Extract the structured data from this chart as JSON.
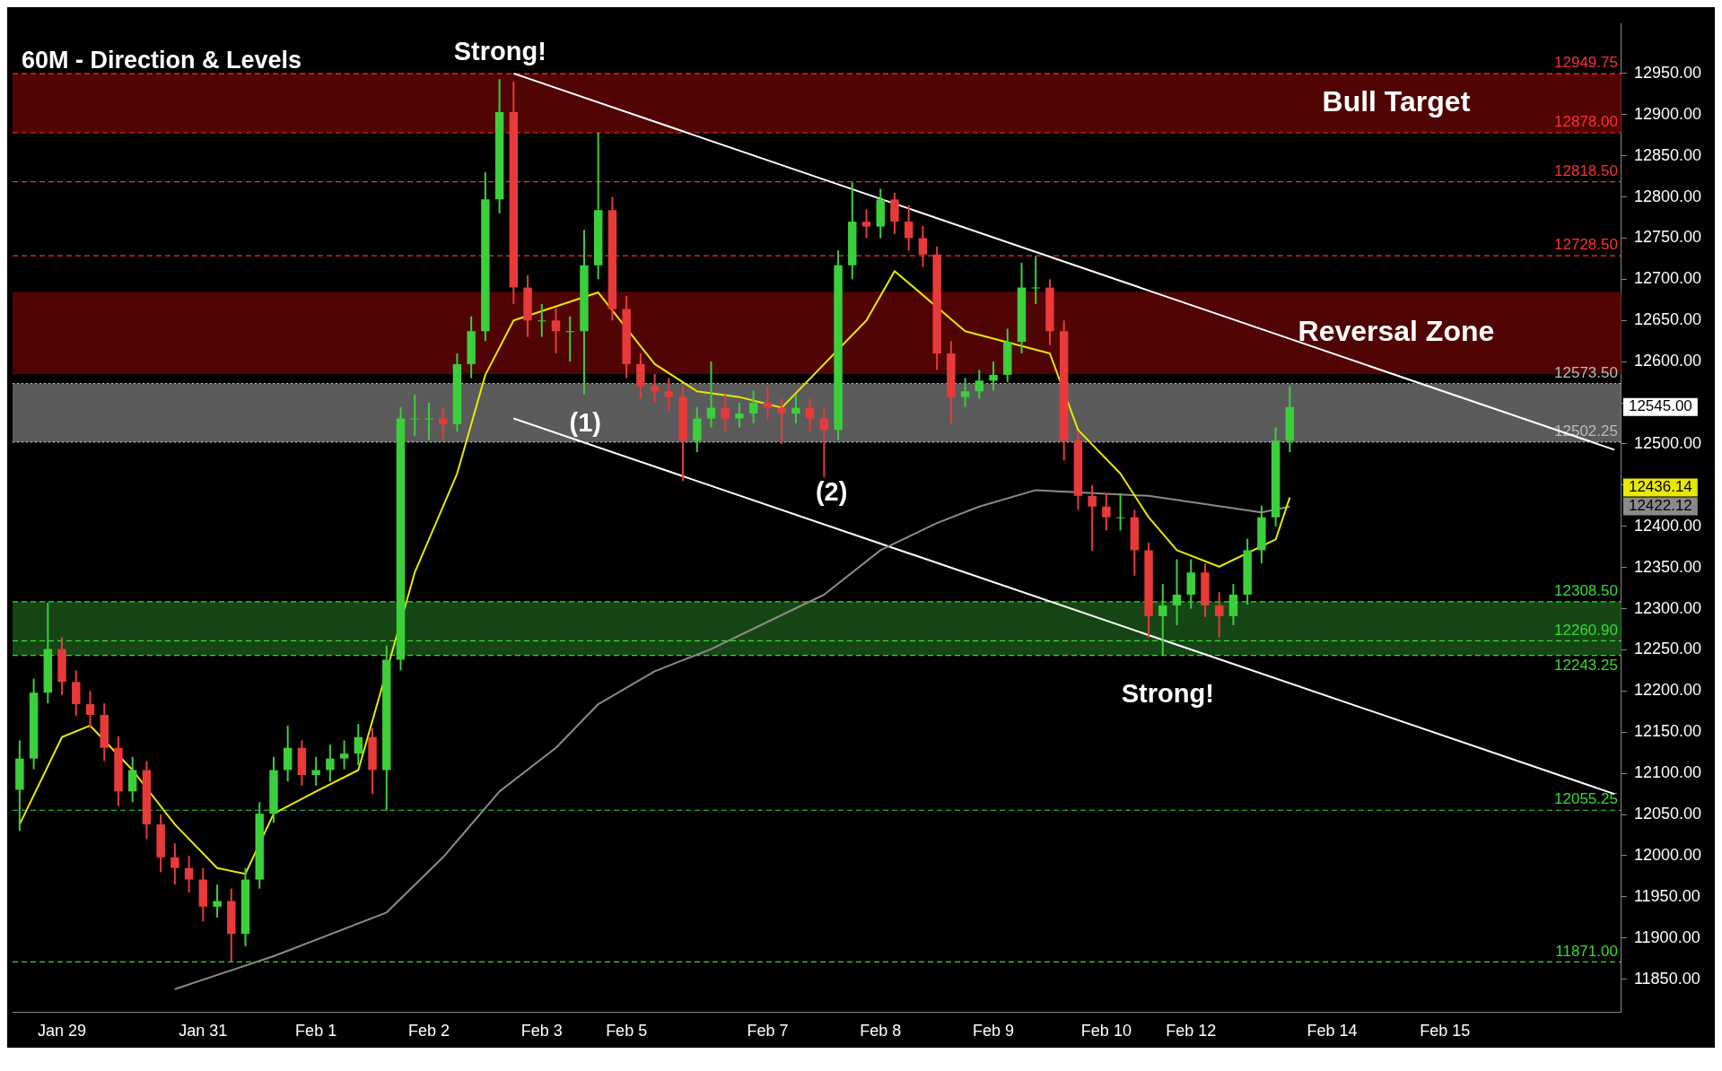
{
  "chart_data": {
    "type": "candlestick",
    "title": "60M - Direction & Levels",
    "categories": [
      null,
      null,
      null,
      "Jan 29",
      null,
      null,
      null,
      null,
      null,
      null,
      null,
      null,
      null,
      "Jan 31",
      null,
      null,
      null,
      null,
      null,
      null,
      null,
      "Feb 1",
      null,
      null,
      null,
      null,
      null,
      null,
      null,
      "Feb 2",
      null,
      null,
      null,
      null,
      null,
      null,
      null,
      "Feb 3",
      null,
      null,
      null,
      null,
      null,
      "Feb 5",
      null,
      null,
      null,
      null,
      null,
      null,
      null,
      null,
      null,
      "Feb 7",
      null,
      null,
      null,
      null,
      null,
      null,
      null,
      "Feb 8",
      null,
      null,
      null,
      null,
      null,
      null,
      null,
      "Feb 9",
      null,
      null,
      null,
      null,
      null,
      null,
      null,
      "Feb 10",
      null,
      null,
      null,
      null,
      null,
      "Feb 12",
      null,
      null,
      null,
      null,
      null,
      null,
      null,
      null,
      null,
      "Feb 14",
      null,
      null,
      null,
      null,
      null,
      null,
      null,
      "Feb 15",
      null,
      null,
      null,
      null,
      null,
      null,
      null,
      null,
      null,
      null,
      null,
      null
    ],
    "ohlc": [
      [
        12080,
        12140,
        12030,
        12118
      ],
      [
        12118,
        12215,
        12105,
        12198
      ],
      [
        12198,
        12307,
        12185,
        12251
      ],
      [
        12251,
        12265,
        12195,
        12211
      ],
      [
        12211,
        12225,
        12170,
        12184
      ],
      [
        12184,
        12200,
        12155,
        12171
      ],
      [
        12171,
        12185,
        12115,
        12131
      ],
      [
        12131,
        12145,
        12060,
        12078
      ],
      [
        12078,
        12120,
        12065,
        12104
      ],
      [
        12104,
        12115,
        12020,
        12038
      ],
      [
        12038,
        12050,
        11980,
        11998
      ],
      [
        11998,
        12015,
        11965,
        11985
      ],
      [
        11985,
        12000,
        11955,
        11971
      ],
      [
        11971,
        11985,
        11920,
        11938
      ],
      [
        11938,
        11965,
        11925,
        11945
      ],
      [
        11945,
        11960,
        11871,
        11905
      ],
      [
        11905,
        11985,
        11890,
        11971
      ],
      [
        11971,
        12065,
        11960,
        12051
      ],
      [
        12051,
        12120,
        12040,
        12104
      ],
      [
        12104,
        12158,
        12090,
        12131
      ],
      [
        12131,
        12140,
        12085,
        12098
      ],
      [
        12098,
        12120,
        12085,
        12104
      ],
      [
        12104,
        12135,
        12090,
        12118
      ],
      [
        12118,
        12140,
        12105,
        12124
      ],
      [
        12124,
        12160,
        12110,
        12144
      ],
      [
        12144,
        12155,
        12075,
        12104
      ],
      [
        12104,
        12255,
        12055,
        12238
      ],
      [
        12238,
        12545,
        12225,
        12531
      ],
      [
        12531,
        12560,
        12510,
        12531
      ],
      [
        12531,
        12550,
        12505,
        12531
      ],
      [
        12531,
        12545,
        12505,
        12524
      ],
      [
        12524,
        12610,
        12515,
        12597
      ],
      [
        12597,
        12655,
        12580,
        12637
      ],
      [
        12637,
        12830,
        12625,
        12797
      ],
      [
        12797,
        12943,
        12780,
        12903
      ],
      [
        12903,
        12940,
        12670,
        12690
      ],
      [
        12690,
        12705,
        12630,
        12650
      ],
      [
        12650,
        12670,
        12630,
        12650
      ],
      [
        12650,
        12665,
        12610,
        12637
      ],
      [
        12637,
        12655,
        12600,
        12637
      ],
      [
        12637,
        12760,
        12560,
        12717
      ],
      [
        12717,
        12878,
        12700,
        12784
      ],
      [
        12784,
        12800,
        12650,
        12664
      ],
      [
        12664,
        12680,
        12580,
        12597
      ],
      [
        12597,
        12610,
        12555,
        12570
      ],
      [
        12570,
        12585,
        12550,
        12564
      ],
      [
        12564,
        12580,
        12540,
        12557
      ],
      [
        12557,
        12570,
        12455,
        12504
      ],
      [
        12504,
        12545,
        12490,
        12531
      ],
      [
        12531,
        12600,
        12520,
        12544
      ],
      [
        12544,
        12560,
        12515,
        12531
      ],
      [
        12531,
        12550,
        12520,
        12537
      ],
      [
        12537,
        12565,
        12525,
        12550
      ],
      [
        12550,
        12570,
        12530,
        12544
      ],
      [
        12544,
        12555,
        12500,
        12537
      ],
      [
        12537,
        12560,
        12525,
        12544
      ],
      [
        12544,
        12555,
        12515,
        12531
      ],
      [
        12531,
        12545,
        12460,
        12517
      ],
      [
        12517,
        12735,
        12505,
        12717
      ],
      [
        12717,
        12818,
        12700,
        12770
      ],
      [
        12770,
        12785,
        12750,
        12764
      ],
      [
        12764,
        12810,
        12750,
        12797
      ],
      [
        12797,
        12805,
        12755,
        12770
      ],
      [
        12770,
        12790,
        12735,
        12750
      ],
      [
        12750,
        12765,
        12715,
        12730
      ],
      [
        12730,
        12740,
        12590,
        12610
      ],
      [
        12610,
        12625,
        12525,
        12557
      ],
      [
        12557,
        12580,
        12545,
        12564
      ],
      [
        12564,
        12590,
        12555,
        12577
      ],
      [
        12577,
        12600,
        12565,
        12584
      ],
      [
        12584,
        12640,
        12575,
        12624
      ],
      [
        12624,
        12720,
        12610,
        12690
      ],
      [
        12690,
        12728,
        12670,
        12690
      ],
      [
        12690,
        12700,
        12620,
        12637
      ],
      [
        12637,
        12650,
        12480,
        12504
      ],
      [
        12504,
        12515,
        12420,
        12437
      ],
      [
        12437,
        12450,
        12370,
        12424
      ],
      [
        12424,
        12440,
        12395,
        12411
      ],
      [
        12411,
        12440,
        12395,
        12411
      ],
      [
        12411,
        12420,
        12340,
        12371
      ],
      [
        12371,
        12380,
        12265,
        12291
      ],
      [
        12291,
        12330,
        12244,
        12304
      ],
      [
        12304,
        12360,
        12280,
        12317
      ],
      [
        12317,
        12360,
        12300,
        12344
      ],
      [
        12344,
        12355,
        12290,
        12304
      ],
      [
        12304,
        12320,
        12265,
        12291
      ],
      [
        12291,
        12330,
        12280,
        12317
      ],
      [
        12317,
        12385,
        12305,
        12371
      ],
      [
        12371,
        12425,
        12355,
        12411
      ],
      [
        12411,
        12520,
        12400,
        12504
      ],
      [
        12504,
        12570,
        12490,
        12545
      ],
      null,
      null,
      null,
      null,
      null,
      null,
      null,
      null,
      null,
      null,
      null,
      null,
      null,
      null,
      null,
      null,
      null,
      null,
      null,
      null,
      null,
      null,
      null
    ],
    "series": [
      {
        "type": "line",
        "color": "#e8e800",
        "values": [
          12038,
          null,
          null,
          12144,
          null,
          12158,
          null,
          null,
          12104,
          null,
          null,
          12038,
          null,
          null,
          11985,
          null,
          11978,
          null,
          12051,
          null,
          null,
          12078,
          null,
          null,
          12104,
          null,
          null,
          null,
          12344,
          null,
          null,
          12464,
          null,
          12584,
          null,
          12650,
          null,
          null,
          null,
          null,
          null,
          12684,
          null,
          null,
          null,
          12597,
          null,
          null,
          12564,
          null,
          null,
          12557,
          null,
          null,
          12544,
          null,
          null,
          null,
          null,
          null,
          12650,
          null,
          12710,
          null,
          null,
          null,
          null,
          12637,
          null,
          null,
          null,
          null,
          null,
          12610,
          null,
          12517,
          null,
          null,
          12464,
          null,
          12411,
          null,
          12371,
          null,
          null,
          12351,
          null,
          null,
          null,
          12384,
          12435,
          null,
          null,
          null,
          null,
          null,
          null,
          null,
          null,
          null,
          null,
          null,
          null,
          null,
          null,
          null,
          null,
          null,
          null,
          null,
          null,
          null,
          null,
          null
        ]
      },
      {
        "type": "line",
        "color": "#8a8a8a",
        "values": [
          null,
          null,
          null,
          null,
          null,
          null,
          null,
          null,
          null,
          null,
          null,
          11838,
          null,
          null,
          null,
          null,
          null,
          null,
          11878,
          null,
          null,
          null,
          null,
          null,
          null,
          null,
          11931,
          null,
          null,
          null,
          11998,
          null,
          null,
          null,
          12078,
          null,
          null,
          null,
          12131,
          null,
          null,
          12184,
          null,
          null,
          null,
          12224,
          null,
          null,
          null,
          12251,
          null,
          null,
          null,
          12284,
          null,
          null,
          null,
          12317,
          null,
          null,
          null,
          12371,
          null,
          null,
          null,
          12404,
          null,
          null,
          12424,
          null,
          null,
          null,
          12444,
          null,
          null,
          null,
          null,
          null,
          null,
          null,
          12437,
          null,
          null,
          null,
          12427,
          null,
          null,
          null,
          12417,
          null,
          12424,
          null,
          null,
          null,
          null,
          null,
          null,
          null,
          null,
          null,
          null,
          null,
          null,
          null,
          null,
          null,
          null,
          null,
          null,
          null,
          null,
          null,
          null,
          null
        ]
      },
      {
        "type": "line",
        "color": "#ffffff",
        "values": [
          null,
          null,
          null,
          null,
          null,
          null,
          null,
          null,
          null,
          null,
          null,
          null,
          null,
          null,
          null,
          null,
          null,
          null,
          null,
          null,
          null,
          null,
          null,
          null,
          null,
          null,
          null,
          null,
          null,
          null,
          null,
          null,
          null,
          null,
          null,
          12950,
          null,
          null,
          null,
          null,
          null,
          null,
          null,
          null,
          null,
          null,
          null,
          null,
          null,
          null,
          null,
          null,
          null,
          null,
          null,
          null,
          null,
          null,
          null,
          null,
          null,
          null,
          null,
          null,
          null,
          null,
          null,
          null,
          null,
          null,
          null,
          null,
          null,
          null,
          null,
          null,
          null,
          null,
          null,
          null,
          null,
          null,
          null,
          null,
          null,
          null,
          null,
          null,
          null,
          null,
          null,
          null,
          null,
          null,
          null,
          null,
          null,
          null,
          null,
          null,
          null,
          null,
          null,
          null,
          null,
          null,
          null,
          null,
          null,
          null,
          null,
          null,
          null,
          12493
        ]
      },
      {
        "type": "line",
        "color": "#ffffff",
        "values": [
          null,
          null,
          null,
          null,
          null,
          null,
          null,
          null,
          null,
          null,
          null,
          null,
          null,
          null,
          null,
          null,
          null,
          null,
          null,
          null,
          null,
          null,
          null,
          null,
          null,
          null,
          null,
          null,
          null,
          null,
          null,
          null,
          null,
          null,
          null,
          12531,
          null,
          null,
          null,
          null,
          null,
          null,
          null,
          null,
          null,
          null,
          null,
          null,
          null,
          null,
          null,
          null,
          null,
          null,
          null,
          null,
          null,
          null,
          null,
          null,
          null,
          null,
          null,
          null,
          null,
          null,
          null,
          null,
          null,
          null,
          null,
          null,
          null,
          null,
          null,
          null,
          null,
          null,
          null,
          null,
          null,
          null,
          null,
          null,
          null,
          null,
          null,
          null,
          null,
          null,
          null,
          null,
          null,
          null,
          null,
          null,
          null,
          null,
          null,
          null,
          null,
          null,
          null,
          null,
          null,
          null,
          null,
          null,
          null,
          null,
          null,
          null,
          null,
          12075
        ]
      }
    ],
    "ylim": [
      11810,
      13010
    ],
    "yticks": [
      {
        "value": 11850,
        "label": "11850.00"
      },
      {
        "value": 11900,
        "label": "11900.00"
      },
      {
        "value": 11950,
        "label": "11950.00"
      },
      {
        "value": 12000,
        "label": "12000.00"
      },
      {
        "value": 12050,
        "label": "12050.00"
      },
      {
        "value": 12100,
        "label": "12100.00"
      },
      {
        "value": 12150,
        "label": "12150.00"
      },
      {
        "value": 12200,
        "label": "12200.00"
      },
      {
        "value": 12250,
        "label": "12250.00"
      },
      {
        "value": 12300,
        "label": "12300.00"
      },
      {
        "value": 12350,
        "label": "12350.00"
      },
      {
        "value": 12400,
        "label": "12400.00"
      },
      {
        "value": 12450,
        "label": null
      },
      {
        "value": 12500,
        "label": "12500.00"
      },
      {
        "value": 12550,
        "label": null
      },
      {
        "value": 12600,
        "label": "12600.00"
      },
      {
        "value": 12650,
        "label": "12650.00"
      },
      {
        "value": 12700,
        "label": "12700.00"
      },
      {
        "value": 12750,
        "label": "12750.00"
      },
      {
        "value": 12800,
        "label": "12800.00"
      },
      {
        "value": 12850,
        "label": "12850.00"
      },
      {
        "value": 12900,
        "label": "12900.00"
      },
      {
        "value": 12950,
        "label": "12950.00"
      }
    ],
    "bands": [
      {
        "axis": "y",
        "from": 12878,
        "to": 12949.75,
        "label": "Bull Target",
        "color": "#6b0505"
      },
      {
        "axis": "y",
        "from": 12585,
        "to": 12685,
        "label": "Reversal Zone",
        "color": "#6b0505"
      },
      {
        "axis": "y",
        "from": 12502.25,
        "to": 12573.5,
        "color": "#7a7a7a"
      },
      {
        "axis": "y",
        "from": 12243.25,
        "to": 12308.5,
        "color": "#1e5e1e"
      }
    ],
    "ref_lines": [
      {
        "axis": "y",
        "value": 12949.75,
        "label": "12949.75",
        "color": "#ff3030",
        "line_style": "dashed"
      },
      {
        "axis": "y",
        "value": 12878,
        "label": "12878.00",
        "color": "#ff3030",
        "line_style": "dashed"
      },
      {
        "axis": "y",
        "value": 12818.5,
        "label": "12818.50",
        "color": "#ff3030",
        "line_style": "dashed"
      },
      {
        "axis": "y",
        "value": 12728.5,
        "label": "12728.50",
        "color": "#ff3030",
        "line_style": "dashed"
      },
      {
        "axis": "y",
        "value": 12573.5,
        "label": "12573.50",
        "color": "#bbbbbb",
        "line_style": "dotted"
      },
      {
        "axis": "y",
        "value": 12502.25,
        "label": "12502.25",
        "color": "#bbbbbb",
        "line_style": "dotted"
      },
      {
        "axis": "y",
        "value": 12308.5,
        "label": "12308.50",
        "color": "#33dd33",
        "line_style": "dashed"
      },
      {
        "axis": "y",
        "value": 12260.9,
        "label": "12260.90",
        "color": "#33dd33",
        "line_style": "dashed"
      },
      {
        "axis": "y",
        "value": 12243.25,
        "label": "12243.25",
        "color": "#33dd33",
        "line_style": "dashed"
      },
      {
        "axis": "y",
        "value": 12055.25,
        "label": "12055.25",
        "color": "#33dd33",
        "line_style": "dashed"
      },
      {
        "axis": "y",
        "value": 11871,
        "label": "11871.00",
        "color": "#33dd33",
        "line_style": "dashed"
      }
    ],
    "annotations": [
      "Strong!",
      "Strong!",
      "(1)",
      "(2)",
      "12545.00",
      "12436.14",
      "12422.12"
    ],
    "grid": false
  }
}
